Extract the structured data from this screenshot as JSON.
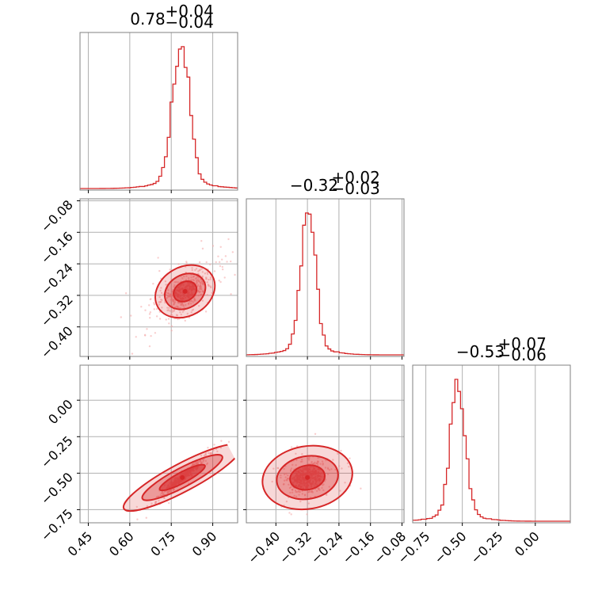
{
  "chart_data": {
    "type": "corner",
    "color": "#d62728",
    "parameters": [
      {
        "title": {
          "main": "0.78",
          "plus": "+0.04",
          "minus": "−0.04"
        },
        "range": [
          0.42,
          0.99
        ],
        "ticks": [
          0.45,
          0.6,
          0.75,
          0.9
        ],
        "tick_labels": [
          "0.45",
          "0.60",
          "0.75",
          "0.90"
        ]
      },
      {
        "title": {
          "main": "−0.32",
          "plus": "+0.02",
          "minus": "−0.03"
        },
        "range": [
          -0.475,
          -0.075
        ],
        "ticks": [
          -0.4,
          -0.32,
          -0.24,
          -0.16,
          -0.08
        ],
        "tick_labels": [
          "−0.40",
          "−0.32",
          "−0.24",
          "−0.16",
          "−0.08"
        ]
      },
      {
        "title": {
          "main": "−0.53",
          "plus": "+0.07",
          "minus": "−0.06"
        },
        "range": [
          -0.84,
          0.24
        ],
        "ticks": [
          -0.75,
          -0.5,
          -0.25,
          0.0
        ],
        "tick_labels": [
          "−0.75",
          "−0.50",
          "−0.25",
          "0.00"
        ]
      }
    ],
    "histograms": [
      {
        "param": 0,
        "peak": 0.785,
        "sigma": 0.03
      },
      {
        "param": 1,
        "peak": -0.318,
        "sigma": 0.018
      },
      {
        "param": 2,
        "peak": -0.53,
        "sigma": 0.05
      }
    ],
    "contours": [
      {
        "x": 0,
        "y": 1,
        "center": [
          0.8,
          -0.31
        ]
      },
      {
        "x": 0,
        "y": 2,
        "center": [
          0.79,
          -0.53
        ]
      },
      {
        "x": 1,
        "y": 2,
        "center": [
          -0.32,
          -0.53
        ]
      }
    ]
  }
}
